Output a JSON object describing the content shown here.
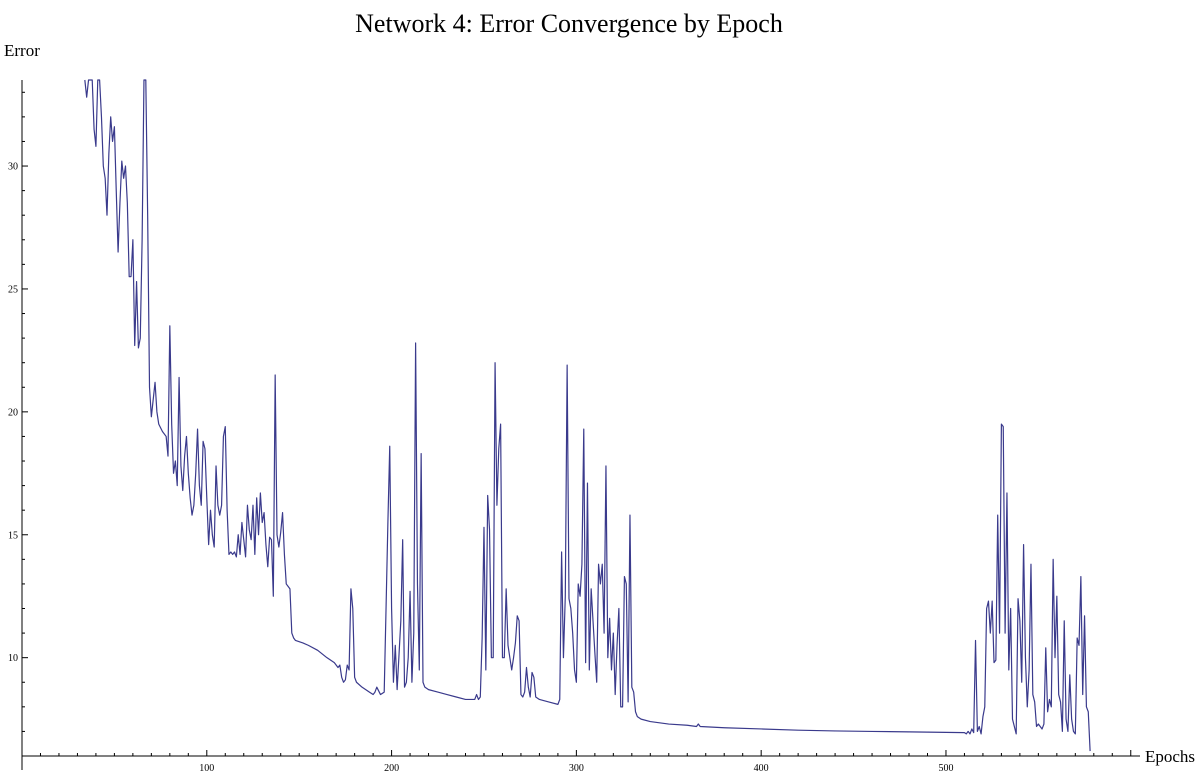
{
  "chart_data": {
    "type": "line",
    "title": "Network 4: Error Convergence by Epoch",
    "xlabel": "Epochs",
    "ylabel": "Error",
    "xlim": [
      0,
      605
    ],
    "ylim": [
      6,
      33.5
    ],
    "x_ticks_major": [
      100,
      200,
      300,
      400,
      500
    ],
    "y_ticks_major": [
      10,
      15,
      20,
      25,
      30
    ],
    "grid": false,
    "legend": "none",
    "line_color": "#3a3a8c",
    "series": [
      {
        "points": [
          [
            34,
            33.5
          ],
          [
            35,
            32.8
          ],
          [
            36,
            33.5
          ],
          [
            38,
            33.5
          ],
          [
            39,
            31.5
          ],
          [
            40,
            30.8
          ],
          [
            41,
            33.5
          ],
          [
            42,
            33.5
          ],
          [
            43,
            32
          ],
          [
            44,
            30
          ],
          [
            45,
            29.5
          ],
          [
            46,
            28
          ],
          [
            47,
            30.5
          ],
          [
            48,
            32
          ],
          [
            49,
            31
          ],
          [
            50,
            31.6
          ],
          [
            51,
            29
          ],
          [
            52,
            26.5
          ],
          [
            53,
            28.5
          ],
          [
            54,
            30.2
          ],
          [
            55,
            29.5
          ],
          [
            56,
            30
          ],
          [
            57,
            28.5
          ],
          [
            58,
            25.5
          ],
          [
            59,
            25.5
          ],
          [
            60,
            27
          ],
          [
            61,
            22.7
          ],
          [
            62,
            25.3
          ],
          [
            63,
            22.6
          ],
          [
            64,
            23
          ],
          [
            65,
            27
          ],
          [
            66,
            33.5
          ],
          [
            67,
            33.5
          ],
          [
            68,
            28
          ],
          [
            69,
            21
          ],
          [
            70,
            19.8
          ],
          [
            71,
            20.5
          ],
          [
            72,
            21.2
          ],
          [
            73,
            20
          ],
          [
            74,
            19.5
          ],
          [
            76,
            19.2
          ],
          [
            78,
            19
          ],
          [
            79,
            18.2
          ],
          [
            80,
            23.5
          ],
          [
            81,
            19.5
          ],
          [
            82,
            17.5
          ],
          [
            83,
            18
          ],
          [
            84,
            17
          ],
          [
            85,
            21.4
          ],
          [
            86,
            17.8
          ],
          [
            87,
            16.8
          ],
          [
            88,
            18.2
          ],
          [
            89,
            19
          ],
          [
            90,
            17.5
          ],
          [
            91,
            16.5
          ],
          [
            92,
            15.8
          ],
          [
            93,
            16.2
          ],
          [
            94,
            17.5
          ],
          [
            95,
            19.3
          ],
          [
            96,
            17
          ],
          [
            97,
            16.2
          ],
          [
            98,
            18.8
          ],
          [
            99,
            18.5
          ],
          [
            100,
            16.5
          ],
          [
            101,
            14.6
          ],
          [
            102,
            16
          ],
          [
            103,
            15
          ],
          [
            104,
            14.5
          ],
          [
            105,
            17.8
          ],
          [
            106,
            16.2
          ],
          [
            107,
            15.8
          ],
          [
            108,
            16.2
          ],
          [
            109,
            19
          ],
          [
            110,
            19.4
          ],
          [
            111,
            16
          ],
          [
            112,
            14.2
          ],
          [
            113,
            14.3
          ],
          [
            114,
            14.2
          ],
          [
            115,
            14.3
          ],
          [
            116,
            14.1
          ],
          [
            117,
            15
          ],
          [
            118,
            14.2
          ],
          [
            119,
            15.5
          ],
          [
            120,
            14.8
          ],
          [
            121,
            14.1
          ],
          [
            122,
            16.2
          ],
          [
            123,
            15.2
          ],
          [
            124,
            14.8
          ],
          [
            125,
            16.2
          ],
          [
            126,
            14.2
          ],
          [
            127,
            16.5
          ],
          [
            128,
            15
          ],
          [
            129,
            16.7
          ],
          [
            130,
            15.5
          ],
          [
            131,
            15.9
          ],
          [
            132,
            14.6
          ],
          [
            133,
            13.7
          ],
          [
            134,
            14.9
          ],
          [
            135,
            14.8
          ],
          [
            136,
            12.5
          ],
          [
            137,
            21.5
          ],
          [
            138,
            15
          ],
          [
            139,
            14.5
          ],
          [
            140,
            15.1
          ],
          [
            141,
            15.9
          ],
          [
            142,
            14.2
          ],
          [
            143,
            13
          ],
          [
            144,
            12.9
          ],
          [
            145,
            12.8
          ],
          [
            146,
            11
          ],
          [
            147,
            10.8
          ],
          [
            148,
            10.7
          ],
          [
            152,
            10.6
          ],
          [
            155,
            10.5
          ],
          [
            160,
            10.3
          ],
          [
            165,
            10
          ],
          [
            169,
            9.8
          ],
          [
            171,
            9.6
          ],
          [
            172,
            9.7
          ],
          [
            173,
            9.2
          ],
          [
            174,
            9
          ],
          [
            175,
            9.1
          ],
          [
            176,
            9.7
          ],
          [
            177,
            9.5
          ],
          [
            178,
            12.8
          ],
          [
            179,
            12
          ],
          [
            180,
            9.2
          ],
          [
            181,
            9
          ],
          [
            184,
            8.8
          ],
          [
            186,
            8.7
          ],
          [
            188,
            8.6
          ],
          [
            190,
            8.5
          ],
          [
            191,
            8.6
          ],
          [
            192,
            8.8
          ],
          [
            194,
            8.5
          ],
          [
            196,
            8.6
          ],
          [
            197,
            12
          ],
          [
            198,
            15.5
          ],
          [
            199,
            18.6
          ],
          [
            200,
            12
          ],
          [
            201,
            9
          ],
          [
            202,
            10.5
          ],
          [
            203,
            8.7
          ],
          [
            205,
            11.5
          ],
          [
            206,
            14.8
          ],
          [
            207,
            8.8
          ],
          [
            208,
            9
          ],
          [
            209,
            10
          ],
          [
            210,
            12.7
          ],
          [
            211,
            9
          ],
          [
            212,
            11
          ],
          [
            213,
            22.8
          ],
          [
            214,
            13
          ],
          [
            215,
            9.5
          ],
          [
            216,
            18.3
          ],
          [
            217,
            9
          ],
          [
            218,
            8.8
          ],
          [
            220,
            8.7
          ],
          [
            225,
            8.6
          ],
          [
            230,
            8.5
          ],
          [
            235,
            8.4
          ],
          [
            240,
            8.3
          ],
          [
            245,
            8.3
          ],
          [
            246,
            8.5
          ],
          [
            247,
            8.3
          ],
          [
            248,
            8.4
          ],
          [
            249,
            10.8
          ],
          [
            250,
            15.3
          ],
          [
            251,
            9.5
          ],
          [
            252,
            16.6
          ],
          [
            253,
            15.2
          ],
          [
            254,
            10
          ],
          [
            255,
            10
          ],
          [
            256,
            22
          ],
          [
            257,
            16.2
          ],
          [
            258,
            18.5
          ],
          [
            259,
            19.5
          ],
          [
            260,
            10
          ],
          [
            261,
            10
          ],
          [
            262,
            12.8
          ],
          [
            263,
            10.5
          ],
          [
            264,
            10
          ],
          [
            265,
            9.5
          ],
          [
            266,
            10
          ],
          [
            267,
            10.6
          ],
          [
            268,
            11.7
          ],
          [
            269,
            11.5
          ],
          [
            270,
            8.5
          ],
          [
            271,
            8.4
          ],
          [
            272,
            8.6
          ],
          [
            273,
            9.6
          ],
          [
            274,
            8.8
          ],
          [
            275,
            8.4
          ],
          [
            276,
            9.4
          ],
          [
            277,
            9.2
          ],
          [
            278,
            8.4
          ],
          [
            280,
            8.3
          ],
          [
            285,
            8.2
          ],
          [
            290,
            8.1
          ],
          [
            291,
            8.3
          ],
          [
            292,
            14.3
          ],
          [
            293,
            10
          ],
          [
            294,
            12.5
          ],
          [
            295,
            21.9
          ],
          [
            296,
            12.4
          ],
          [
            297,
            12
          ],
          [
            298,
            11
          ],
          [
            299,
            9.5
          ],
          [
            300,
            9
          ],
          [
            301,
            13
          ],
          [
            302,
            12.5
          ],
          [
            303,
            13.8
          ],
          [
            304,
            19.3
          ],
          [
            305,
            9.8
          ],
          [
            306,
            17.1
          ],
          [
            307,
            9.5
          ],
          [
            308,
            12.8
          ],
          [
            309,
            11.5
          ],
          [
            310,
            10.2
          ],
          [
            311,
            9
          ],
          [
            312,
            13.8
          ],
          [
            313,
            13
          ],
          [
            314,
            13.8
          ],
          [
            315,
            11
          ],
          [
            316,
            17.8
          ],
          [
            317,
            10
          ],
          [
            318,
            11.6
          ],
          [
            319,
            9.5
          ],
          [
            320,
            11
          ],
          [
            321,
            8.5
          ],
          [
            322,
            10.5
          ],
          [
            323,
            12
          ],
          [
            324,
            8
          ],
          [
            325,
            8
          ],
          [
            326,
            13.3
          ],
          [
            327,
            13
          ],
          [
            328,
            8.2
          ],
          [
            329,
            15.8
          ],
          [
            330,
            8.8
          ],
          [
            331,
            8.6
          ],
          [
            332,
            7.8
          ],
          [
            333,
            7.6
          ],
          [
            335,
            7.5
          ],
          [
            340,
            7.4
          ],
          [
            350,
            7.3
          ],
          [
            360,
            7.25
          ],
          [
            365,
            7.2
          ],
          [
            366,
            7.3
          ],
          [
            367,
            7.2
          ],
          [
            380,
            7.15
          ],
          [
            400,
            7.1
          ],
          [
            420,
            7.05
          ],
          [
            440,
            7.02
          ],
          [
            460,
            7.0
          ],
          [
            480,
            6.98
          ],
          [
            500,
            6.96
          ],
          [
            510,
            6.95
          ],
          [
            511,
            6.9
          ],
          [
            512,
            7
          ],
          [
            513,
            6.9
          ],
          [
            514,
            7.1
          ],
          [
            515,
            6.95
          ],
          [
            516,
            10.7
          ],
          [
            517,
            7
          ],
          [
            518,
            7.2
          ],
          [
            519,
            6.9
          ],
          [
            520,
            7.6
          ],
          [
            521,
            8
          ],
          [
            522,
            12
          ],
          [
            523,
            12.3
          ],
          [
            524,
            11
          ],
          [
            525,
            12.3
          ],
          [
            526,
            9.8
          ],
          [
            527,
            9.9
          ],
          [
            528,
            15.8
          ],
          [
            529,
            11
          ],
          [
            530,
            19.5
          ],
          [
            531,
            19.4
          ],
          [
            532,
            11
          ],
          [
            533,
            16.7
          ],
          [
            534,
            9.5
          ],
          [
            535,
            12
          ],
          [
            536,
            7.5
          ],
          [
            537,
            7.2
          ],
          [
            538,
            6.9
          ],
          [
            539,
            12.4
          ],
          [
            540,
            11.5
          ],
          [
            541,
            9
          ],
          [
            542,
            14.6
          ],
          [
            543,
            10
          ],
          [
            544,
            8
          ],
          [
            545,
            9.5
          ],
          [
            546,
            13.8
          ],
          [
            547,
            8.5
          ],
          [
            548,
            8.2
          ],
          [
            549,
            7.2
          ],
          [
            550,
            7.3
          ],
          [
            552,
            7.1
          ],
          [
            553,
            7.3
          ],
          [
            554,
            10.4
          ],
          [
            555,
            7.8
          ],
          [
            556,
            8.3
          ],
          [
            557,
            8
          ],
          [
            558,
            14
          ],
          [
            559,
            10
          ],
          [
            560,
            12.5
          ],
          [
            561,
            8.5
          ],
          [
            562,
            8.2
          ],
          [
            563,
            7
          ],
          [
            564,
            11.5
          ],
          [
            565,
            7.5
          ],
          [
            566,
            7
          ],
          [
            567,
            9.3
          ],
          [
            568,
            7.5
          ],
          [
            569,
            7
          ],
          [
            570,
            6.9
          ],
          [
            571,
            10.8
          ],
          [
            572,
            10.5
          ],
          [
            573,
            13.3
          ],
          [
            574,
            8.5
          ],
          [
            575,
            11.7
          ],
          [
            576,
            8
          ],
          [
            577,
            7.8
          ],
          [
            578,
            6.2
          ]
        ]
      }
    ]
  }
}
